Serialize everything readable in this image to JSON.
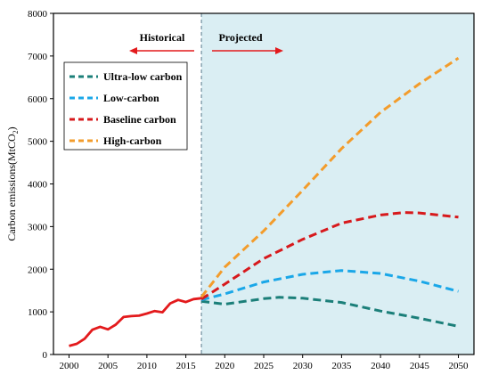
{
  "chart_data": {
    "type": "line",
    "ylabel": "Carbon emissions(MtCO",
    "ylabel_sub": "2",
    "ylabel_close": ")",
    "xlim": [
      1998,
      2052
    ],
    "ylim": [
      0,
      8000
    ],
    "x_ticks": [
      2000,
      2005,
      2010,
      2015,
      2020,
      2025,
      2030,
      2035,
      2040,
      2045,
      2050
    ],
    "y_ticks": [
      0,
      1000,
      2000,
      3000,
      4000,
      5000,
      6000,
      7000,
      8000
    ],
    "divider_year": 2017,
    "projected_region_color": "#daeef3",
    "annotations": {
      "historical": "Historical",
      "projected": "Projected"
    },
    "legend_position": "top-left",
    "series": [
      {
        "name": "",
        "style": "solid",
        "color": "#e31a1c",
        "x": [
          2000,
          2001,
          2002,
          2003,
          2004,
          2005,
          2006,
          2007,
          2008,
          2009,
          2010,
          2011,
          2012,
          2013,
          2014,
          2015,
          2016,
          2017
        ],
        "values": [
          200,
          250,
          370,
          580,
          650,
          590,
          700,
          880,
          900,
          910,
          960,
          1020,
          990,
          1200,
          1280,
          1230,
          1300,
          1320
        ]
      },
      {
        "name": "Ultra-low carbon",
        "style": "dashed",
        "color": "#1b7f79",
        "x": [
          2017,
          2020,
          2025,
          2027,
          2030,
          2035,
          2040,
          2045,
          2050
        ],
        "values": [
          1250,
          1180,
          1310,
          1340,
          1320,
          1220,
          1020,
          850,
          660
        ]
      },
      {
        "name": "Low-carbon",
        "style": "dashed",
        "color": "#1aa7e8",
        "x": [
          2017,
          2020,
          2025,
          2030,
          2035,
          2040,
          2045,
          2050
        ],
        "values": [
          1280,
          1420,
          1700,
          1880,
          1970,
          1900,
          1720,
          1480
        ]
      },
      {
        "name": "Baseline carbon",
        "style": "dashed",
        "color": "#d7191c",
        "x": [
          2017,
          2020,
          2025,
          2030,
          2035,
          2040,
          2043,
          2045,
          2050
        ],
        "values": [
          1300,
          1650,
          2250,
          2700,
          3080,
          3270,
          3330,
          3320,
          3220
        ]
      },
      {
        "name": "High-carbon",
        "style": "dashed",
        "color": "#f39c2b",
        "x": [
          2017,
          2020,
          2025,
          2030,
          2035,
          2040,
          2045,
          2050
        ],
        "values": [
          1350,
          2050,
          2900,
          3850,
          4830,
          5680,
          6350,
          6950
        ]
      }
    ]
  }
}
